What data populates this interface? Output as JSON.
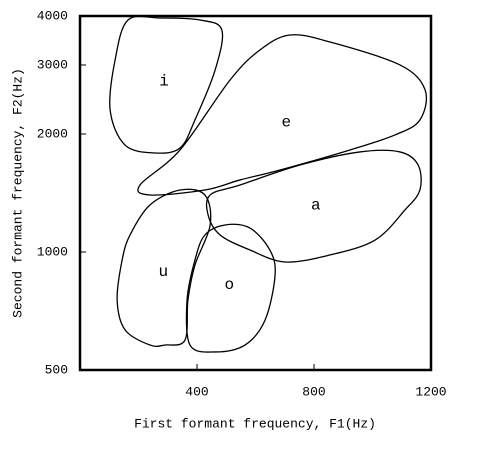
{
  "chart_data": {
    "type": "region",
    "xlabel": "First formant frequency, F1(Hz)",
    "ylabel": "Second formant frequency, F2(Hz)",
    "xlim": [
      0,
      1200
    ],
    "xticks": [
      400,
      800,
      1200
    ],
    "ylim": [
      500,
      4000
    ],
    "yticks": [
      500,
      1000,
      2000,
      3000,
      4000
    ],
    "yscale": "log",
    "color": "#000000",
    "series": [
      {
        "name": "i",
        "x": [
          164,
          274,
          410,
          485,
          462,
          393,
          342,
          256,
          154,
          103,
          120
        ],
        "y": [
          3907,
          3953,
          3907,
          3684,
          2913,
          2172,
          1842,
          1789,
          1874,
          2303,
          3089
        ]
      },
      {
        "name": "e",
        "x": [
          205,
          342,
          513,
          615,
          718,
          855,
          1094,
          1180,
          1162,
          1077,
          923,
          684,
          547,
          427,
          239
        ],
        "y": [
          1482,
          1821,
          2747,
          3276,
          3577,
          3433,
          3000,
          2590,
          2172,
          1989,
          1821,
          1619,
          1527,
          1439,
          1398
        ]
      },
      {
        "name": "a",
        "x": [
          445,
          547,
          752,
          957,
          1094,
          1156,
          1162,
          1111,
          1009,
          855,
          701,
          581,
          479,
          438
        ],
        "y": [
          1398,
          1482,
          1667,
          1800,
          1800,
          1667,
          1439,
          1280,
          1073,
          983,
          943,
          1012,
          1105,
          1243
        ]
      },
      {
        "name": "u",
        "x": [
          239,
          342,
          427,
          445,
          393,
          369,
          359,
          291,
          239,
          154,
          127,
          144,
          171
        ],
        "y": [
          1318,
          1439,
          1398,
          1172,
          926,
          754,
          596,
          579,
          579,
          633,
          754,
          954,
          1105
        ]
      },
      {
        "name": "o",
        "x": [
          427,
          496,
          581,
          649,
          667,
          633,
          564,
          462,
          376,
          366,
          393
        ],
        "y": [
          1105,
          1172,
          1151,
          1012,
          874,
          671,
          579,
          556,
          579,
          754,
          954
        ]
      }
    ]
  }
}
